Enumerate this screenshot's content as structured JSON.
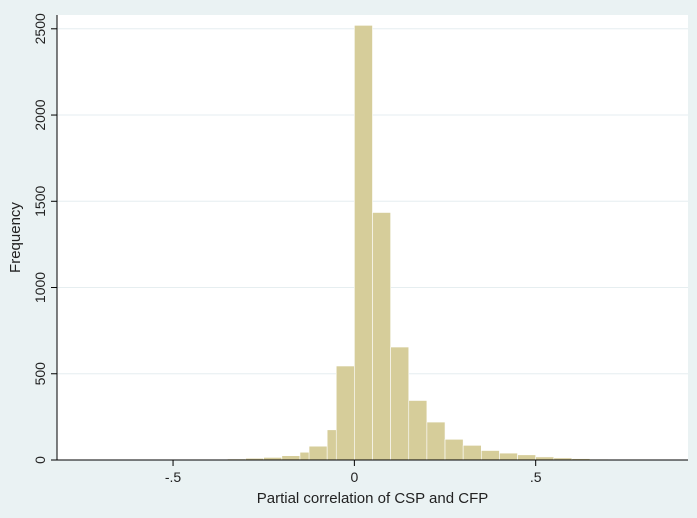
{
  "chart_data": {
    "type": "bar",
    "title": "",
    "xlabel": "Partial correlation of CSP and CFP",
    "ylabel": "Frequency",
    "xlim": [
      -0.82,
      0.92
    ],
    "ylim": [
      0,
      2580
    ],
    "x_ticks": [
      -0.5,
      0,
      0.5
    ],
    "x_tick_labels": [
      "-.5",
      "0",
      ".5"
    ],
    "y_ticks": [
      0,
      500,
      1000,
      1500,
      2000,
      2500
    ],
    "y_tick_labels": [
      "0",
      "500",
      "1000",
      "1500",
      "2000",
      "2500"
    ],
    "grid": "horizontal",
    "legend": "none",
    "bin_width": 0.05,
    "bins": [
      {
        "x0": -0.7,
        "value": 1
      },
      {
        "x0": -0.65,
        "value": 1
      },
      {
        "x0": -0.6,
        "value": 2
      },
      {
        "x0": -0.55,
        "value": 2
      },
      {
        "x0": -0.5,
        "value": 2
      },
      {
        "x0": -0.45,
        "value": 3
      },
      {
        "x0": -0.4,
        "value": 4
      },
      {
        "x0": -0.35,
        "value": 6
      },
      {
        "x0": -0.3,
        "value": 10
      },
      {
        "x0": -0.25,
        "value": 15
      },
      {
        "x0": -0.2,
        "value": 25
      },
      {
        "x0": -0.15,
        "value": 45
      },
      {
        "x0": -0.125,
        "value": 80
      },
      {
        "x0": -0.075,
        "value": 175
      },
      {
        "x0": -0.05,
        "value": 545
      },
      {
        "x0": 0.0,
        "value": 2520
      },
      {
        "x0": 0.05,
        "value": 1435
      },
      {
        "x0": 0.1,
        "value": 655
      },
      {
        "x0": 0.15,
        "value": 345
      },
      {
        "x0": 0.2,
        "value": 220
      },
      {
        "x0": 0.25,
        "value": 120
      },
      {
        "x0": 0.3,
        "value": 85
      },
      {
        "x0": 0.35,
        "value": 55
      },
      {
        "x0": 0.4,
        "value": 40
      },
      {
        "x0": 0.45,
        "value": 30
      },
      {
        "x0": 0.5,
        "value": 18
      },
      {
        "x0": 0.55,
        "value": 12
      },
      {
        "x0": 0.6,
        "value": 8
      },
      {
        "x0": 0.65,
        "value": 5
      },
      {
        "x0": 0.7,
        "value": 4
      },
      {
        "x0": 0.75,
        "value": 3
      },
      {
        "x0": 0.8,
        "value": 2
      },
      {
        "x0": 0.85,
        "value": 1
      }
    ],
    "colors": {
      "bar_fill": "#d6cd9a",
      "bar_stroke": "#ffffff",
      "plot_bg": "#ffffff",
      "outer_bg": "#eaf2f3",
      "grid": "#e6eef0",
      "axis": "#000000"
    }
  }
}
